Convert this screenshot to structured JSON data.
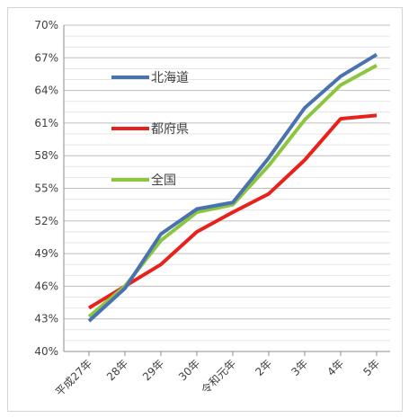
{
  "chart_data": {
    "type": "line",
    "categories": [
      "平成27年",
      "28年",
      "29年",
      "30年",
      "令和元年",
      "2年",
      "3年",
      "4年",
      "5年"
    ],
    "y_tick_labels": [
      "40%",
      "43%",
      "46%",
      "49%",
      "52%",
      "55%",
      "58%",
      "61%",
      "64%",
      "67%",
      "70%"
    ],
    "ylim": [
      40,
      70
    ],
    "y_unit": "%",
    "grid": true,
    "legend_position": "top-left, inside plot",
    "series": [
      {
        "name": "北海道",
        "color": "#4a72b0",
        "values": [
          42.8,
          45.8,
          50.8,
          53.1,
          53.7,
          57.8,
          62.4,
          65.3,
          67.3
        ]
      },
      {
        "name": "都府県",
        "color": "#e8221b",
        "values": [
          44.0,
          46.0,
          48.0,
          51.0,
          52.8,
          54.5,
          57.6,
          61.4,
          61.7
        ]
      },
      {
        "name": "全国",
        "color": "#8cc63f",
        "values": [
          43.2,
          46.0,
          50.2,
          52.8,
          53.5,
          57.1,
          61.3,
          64.5,
          66.3
        ]
      }
    ]
  }
}
